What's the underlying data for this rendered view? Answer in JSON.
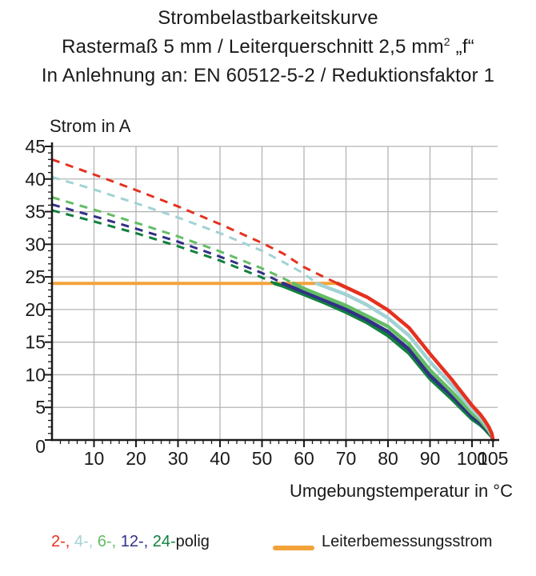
{
  "chart_data": {
    "type": "line",
    "title": "Strombelastbarkeitskurve",
    "subtitle": {
      "prefix": "Rastermaß 5 mm / Leiterquerschnitt 2,5 mm",
      "sup": "2",
      "suffix": " „f“"
    },
    "norm_line": "In Anlehnung an: EN 60512-5-2 / Reduktionsfaktor 1",
    "ylabel": "Strom in A",
    "xlabel": "Umgebungstemperatur in °C",
    "xlim": [
      0,
      106
    ],
    "ylim": [
      0,
      45
    ],
    "grid": true,
    "gridline_color": "#b4b4b4",
    "axis_color": "#1a1a1a",
    "x_ticks_labeled": [
      10,
      20,
      30,
      40,
      50,
      60,
      70,
      80,
      90,
      100,
      105
    ],
    "x_minor_step": 2,
    "y_ticks_labeled": [
      0,
      5,
      10,
      15,
      20,
      25,
      30,
      35,
      40,
      45
    ],
    "y_minor_step": 1,
    "reference_line": {
      "label": "Leiterbemessungsstrom",
      "value_a": 24,
      "x_start": 0,
      "x_end": 68,
      "color": "#f3a23a"
    },
    "series": [
      {
        "name": "2-polig",
        "poles": 2,
        "color": "#e5311f",
        "dashed": [
          [
            0,
            43
          ],
          [
            10,
            40.7
          ],
          [
            20,
            38.3
          ],
          [
            30,
            35.8
          ],
          [
            40,
            33.1
          ],
          [
            50,
            30.2
          ],
          [
            55,
            28.6
          ],
          [
            60,
            26.5
          ],
          [
            65,
            24.9
          ],
          [
            68,
            24
          ]
        ],
        "solid": [
          [
            68,
            24
          ],
          [
            70,
            23.4
          ],
          [
            75,
            21.9
          ],
          [
            80,
            19.9
          ],
          [
            85,
            17.2
          ],
          [
            90,
            13.2
          ],
          [
            95,
            9.4
          ],
          [
            100,
            5.3
          ],
          [
            102,
            3.9
          ],
          [
            103,
            3.0
          ],
          [
            104,
            2.0
          ],
          [
            104.7,
            1.0
          ],
          [
            105,
            0
          ]
        ]
      },
      {
        "name": "4-polig",
        "poles": 4,
        "color": "#a2d2d4",
        "dashed": [
          [
            0,
            40.3
          ],
          [
            10,
            38.4
          ],
          [
            20,
            36.3
          ],
          [
            30,
            34.1
          ],
          [
            40,
            31.7
          ],
          [
            50,
            29.0
          ],
          [
            55,
            27.3
          ],
          [
            60,
            25.5
          ],
          [
            63,
            24
          ]
        ],
        "solid": [
          [
            63,
            24
          ],
          [
            65,
            23.5
          ],
          [
            70,
            22.3
          ],
          [
            75,
            20.7
          ],
          [
            80,
            18.7
          ],
          [
            85,
            16.0
          ],
          [
            90,
            12.0
          ],
          [
            95,
            8.5
          ],
          [
            100,
            4.7
          ],
          [
            102,
            3.4
          ],
          [
            103,
            2.6
          ],
          [
            104,
            1.7
          ],
          [
            104.7,
            0.8
          ],
          [
            105,
            0
          ]
        ]
      },
      {
        "name": "6-polig",
        "poles": 6,
        "color": "#64bd64",
        "dashed": [
          [
            0,
            37.2
          ],
          [
            10,
            35.3
          ],
          [
            20,
            33.3
          ],
          [
            30,
            31.2
          ],
          [
            40,
            28.9
          ],
          [
            50,
            26.3
          ],
          [
            55,
            24.8
          ],
          [
            57.5,
            24
          ]
        ],
        "solid": [
          [
            57.5,
            24
          ],
          [
            60,
            23.2
          ],
          [
            65,
            21.9
          ],
          [
            70,
            20.6
          ],
          [
            75,
            19.0
          ],
          [
            80,
            17.4
          ],
          [
            85,
            14.7
          ],
          [
            90,
            10.7
          ],
          [
            95,
            7.5
          ],
          [
            100,
            4.1
          ],
          [
            102,
            3.0
          ],
          [
            103,
            2.2
          ],
          [
            104,
            1.4
          ],
          [
            104.7,
            0.7
          ],
          [
            105,
            0
          ]
        ]
      },
      {
        "name": "12-polig",
        "poles": 12,
        "color": "#323087",
        "dashed": [
          [
            0,
            36.1
          ],
          [
            10,
            34.3
          ],
          [
            20,
            32.4
          ],
          [
            30,
            30.4
          ],
          [
            40,
            28.1
          ],
          [
            50,
            25.6
          ],
          [
            55,
            24
          ]
        ],
        "solid": [
          [
            55,
            24
          ],
          [
            60,
            22.7
          ],
          [
            65,
            21.4
          ],
          [
            70,
            20.0
          ],
          [
            75,
            18.4
          ],
          [
            80,
            16.6
          ],
          [
            85,
            13.9
          ],
          [
            90,
            9.9
          ],
          [
            95,
            6.9
          ],
          [
            100,
            3.6
          ],
          [
            102,
            2.6
          ],
          [
            103,
            1.9
          ],
          [
            104,
            1.2
          ],
          [
            104.7,
            0.6
          ],
          [
            105,
            0
          ]
        ]
      },
      {
        "name": "24-polig",
        "poles": 24,
        "color": "#13803e",
        "dashed": [
          [
            0,
            35.2
          ],
          [
            10,
            33.5
          ],
          [
            20,
            31.7
          ],
          [
            30,
            29.7
          ],
          [
            40,
            27.5
          ],
          [
            50,
            24.9
          ],
          [
            53,
            24
          ]
        ],
        "solid": [
          [
            53,
            24
          ],
          [
            55,
            23.6
          ],
          [
            60,
            22.3
          ],
          [
            65,
            21.0
          ],
          [
            70,
            19.6
          ],
          [
            75,
            18.0
          ],
          [
            80,
            16.0
          ],
          [
            85,
            13.3
          ],
          [
            90,
            9.4
          ],
          [
            95,
            6.4
          ],
          [
            100,
            3.2
          ],
          [
            102,
            2.3
          ],
          [
            103,
            1.7
          ],
          [
            104,
            1.0
          ],
          [
            104.7,
            0.5
          ],
          [
            105,
            0
          ]
        ]
      }
    ]
  },
  "legend": {
    "pole_tokens": [
      {
        "text": "2-, ",
        "color": "#e5311f"
      },
      {
        "text": "4-, ",
        "color": "#a2d2d4"
      },
      {
        "text": "6-, ",
        "color": "#64bd64"
      },
      {
        "text": "12-, ",
        "color": "#323087"
      },
      {
        "text": "24-",
        "color": "#13803e"
      },
      {
        "text": "polig",
        "color": "#1a1a1a"
      }
    ],
    "rated_label": "Leiterbemessungsstrom"
  }
}
